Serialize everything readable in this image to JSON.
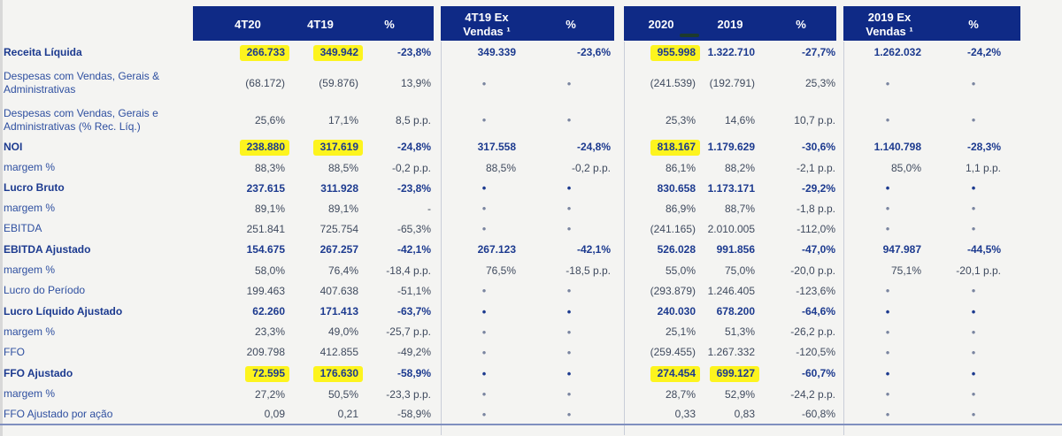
{
  "header": {
    "q_4t20": "4T20",
    "q_4t19": "4T19",
    "q_pct": "%",
    "q_ex_line1": "4T19 Ex",
    "q_ex_line2": "Vendas ¹",
    "q_ex_pct": "%",
    "y_2020": "2020",
    "y_2019": "2019",
    "y_pct": "%",
    "y_ex_line1": "2019 Ex",
    "y_ex_line2": "Vendas ¹",
    "y_ex_pct": "%"
  },
  "rows": [
    {
      "label": "Receita Líquida",
      "bold": true,
      "cells": [
        "266.733",
        "349.942",
        "-23,8%",
        "349.339",
        "-23,6%",
        "955.998",
        "1.322.710",
        "-27,7%",
        "1.262.032",
        "-24,2%"
      ],
      "highlight": [
        0,
        1,
        5
      ]
    },
    {
      "label": "Despesas com Vendas, Gerais & Administrativas",
      "bold": false,
      "cells": [
        "(68.172)",
        "(59.876)",
        "13,9%",
        "•",
        "•",
        "(241.539)",
        "(192.791)",
        "25,3%",
        "•",
        "•"
      ],
      "highlight": []
    },
    {
      "label": "Despesas com Vendas, Gerais e Administrativas (% Rec. Líq.)",
      "bold": false,
      "cells": [
        "25,6%",
        "17,1%",
        "8,5 p.p.",
        "•",
        "•",
        "25,3%",
        "14,6%",
        "10,7 p.p.",
        "•",
        "•"
      ],
      "highlight": []
    },
    {
      "label": "NOI",
      "bold": true,
      "cells": [
        "238.880",
        "317.619",
        "-24,8%",
        "317.558",
        "-24,8%",
        "818.167",
        "1.179.629",
        "-30,6%",
        "1.140.798",
        "-28,3%"
      ],
      "highlight": [
        0,
        1,
        5
      ]
    },
    {
      "label": "margem %",
      "bold": false,
      "cells": [
        "88,3%",
        "88,5%",
        "-0,2 p.p.",
        "88,5%",
        "-0,2 p.p.",
        "86,1%",
        "88,2%",
        "-2,1 p.p.",
        "85,0%",
        "1,1 p.p."
      ],
      "highlight": []
    },
    {
      "label": "Lucro Bruto",
      "bold": true,
      "cells": [
        "237.615",
        "311.928",
        "-23,8%",
        "•",
        "•",
        "830.658",
        "1.173.171",
        "-29,2%",
        "•",
        "•"
      ],
      "highlight": []
    },
    {
      "label": "margem %",
      "bold": false,
      "cells": [
        "89,1%",
        "89,1%",
        "-",
        "•",
        "•",
        "86,9%",
        "88,7%",
        "-1,8 p.p.",
        "•",
        "•"
      ],
      "highlight": []
    },
    {
      "label": "EBITDA",
      "bold": false,
      "cells": [
        "251.841",
        "725.754",
        "-65,3%",
        "•",
        "•",
        "(241.165)",
        "2.010.005",
        "-112,0%",
        "•",
        "•"
      ],
      "highlight": []
    },
    {
      "label": "EBITDA Ajustado",
      "bold": true,
      "cells": [
        "154.675",
        "267.257",
        "-42,1%",
        "267.123",
        "-42,1%",
        "526.028",
        "991.856",
        "-47,0%",
        "947.987",
        "-44,5%"
      ],
      "highlight": []
    },
    {
      "label": "margem %",
      "bold": false,
      "cells": [
        "58,0%",
        "76,4%",
        "-18,4 p.p.",
        "76,5%",
        "-18,5 p.p.",
        "55,0%",
        "75,0%",
        "-20,0 p.p.",
        "75,1%",
        "-20,1 p.p."
      ],
      "highlight": []
    },
    {
      "label": "Lucro do Período",
      "bold": false,
      "cells": [
        "199.463",
        "407.638",
        "-51,1%",
        "•",
        "•",
        "(293.879)",
        "1.246.405",
        "-123,6%",
        "•",
        "•"
      ],
      "highlight": []
    },
    {
      "label": "Lucro Líquido Ajustado",
      "bold": true,
      "cells": [
        "62.260",
        "171.413",
        "-63,7%",
        "•",
        "•",
        "240.030",
        "678.200",
        "-64,6%",
        "•",
        "•"
      ],
      "highlight": []
    },
    {
      "label": "margem %",
      "bold": false,
      "cells": [
        "23,3%",
        "49,0%",
        "-25,7 p.p.",
        "•",
        "•",
        "25,1%",
        "51,3%",
        "-26,2 p.p.",
        "•",
        "•"
      ],
      "highlight": []
    },
    {
      "label": "FFO",
      "bold": false,
      "cells": [
        "209.798",
        "412.855",
        "-49,2%",
        "•",
        "•",
        "(259.455)",
        "1.267.332",
        "-120,5%",
        "•",
        "•"
      ],
      "highlight": []
    },
    {
      "label": "FFO Ajustado",
      "bold": true,
      "cells": [
        "72.595",
        "176.630",
        "-58,9%",
        "•",
        "•",
        "274.454",
        "699.127",
        "-60,7%",
        "•",
        "•"
      ],
      "highlight": [
        0,
        1,
        5,
        6
      ]
    },
    {
      "label": "margem %",
      "bold": false,
      "cells": [
        "27,2%",
        "50,5%",
        "-23,3 p.p.",
        "•",
        "•",
        "28,7%",
        "52,9%",
        "-24,2 p.p.",
        "•",
        "•"
      ],
      "highlight": []
    },
    {
      "label": "FFO Ajustado por ação",
      "bold": false,
      "cells": [
        "0,09",
        "0,21",
        "-58,9%",
        "•",
        "•",
        "0,33",
        "0,83",
        "-60,8%",
        "•",
        "•"
      ],
      "highlight": []
    }
  ]
}
